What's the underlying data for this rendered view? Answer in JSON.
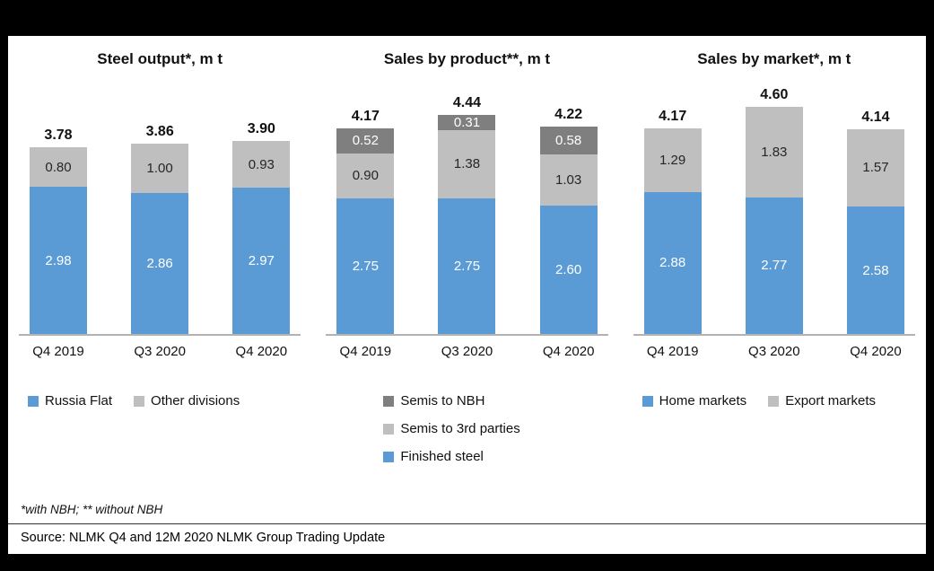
{
  "chart_data": [
    {
      "type": "bar",
      "stacked": true,
      "title": "Steel output*, m t",
      "categories": [
        "Q4 2019",
        "Q3 2020",
        "Q4 2020"
      ],
      "series": [
        {
          "name": "Russia Flat",
          "color": "#5B9BD5",
          "label_color": "#FFFFFF",
          "values": [
            2.98,
            2.86,
            2.97
          ]
        },
        {
          "name": "Other divisions",
          "color": "#BFBFBF",
          "label_color": "#262626",
          "values": [
            0.8,
            1.0,
            0.93
          ]
        }
      ],
      "totals": [
        3.78,
        3.86,
        3.9
      ],
      "ylim": [
        0,
        4.8
      ],
      "grid": false,
      "legend": {
        "orientation": "horizontal",
        "position": "bottom",
        "items": [
          {
            "label": "Russia Flat",
            "color": "#5B9BD5"
          },
          {
            "label": "Other divisions",
            "color": "#BFBFBF"
          }
        ]
      }
    },
    {
      "type": "bar",
      "stacked": true,
      "title": "Sales by product**, m t",
      "categories": [
        "Q4 2019",
        "Q3 2020",
        "Q4 2020"
      ],
      "series": [
        {
          "name": "Finished steel",
          "color": "#5B9BD5",
          "label_color": "#FFFFFF",
          "values": [
            2.75,
            2.75,
            2.6
          ]
        },
        {
          "name": "Semis to 3rd parties",
          "color": "#BFBFBF",
          "label_color": "#262626",
          "values": [
            0.9,
            1.38,
            1.03
          ]
        },
        {
          "name": "Semis to NBH",
          "color": "#7F7F7F",
          "label_color": "#FFFFFF",
          "values": [
            0.52,
            0.31,
            0.58
          ]
        }
      ],
      "totals": [
        4.17,
        4.44,
        4.22
      ],
      "ylim": [
        0,
        4.8
      ],
      "grid": false,
      "legend": {
        "orientation": "vertical",
        "position": "bottom",
        "items": [
          {
            "label": "Semis to NBH",
            "color": "#7F7F7F"
          },
          {
            "label": "Semis to 3rd parties",
            "color": "#BFBFBF"
          },
          {
            "label": "Finished steel",
            "color": "#5B9BD5"
          }
        ]
      }
    },
    {
      "type": "bar",
      "stacked": true,
      "title": "Sales by market*, m t",
      "categories": [
        "Q4 2019",
        "Q3 2020",
        "Q4 2020"
      ],
      "series": [
        {
          "name": "Home markets",
          "color": "#5B9BD5",
          "label_color": "#FFFFFF",
          "values": [
            2.88,
            2.77,
            2.58
          ]
        },
        {
          "name": "Export markets",
          "color": "#BFBFBF",
          "label_color": "#262626",
          "values": [
            1.29,
            1.83,
            1.57
          ]
        }
      ],
      "totals": [
        4.17,
        4.6,
        4.14
      ],
      "ylim": [
        0,
        4.8
      ],
      "grid": false,
      "legend": {
        "orientation": "horizontal",
        "position": "bottom",
        "items": [
          {
            "label": "Home markets",
            "color": "#5B9BD5"
          },
          {
            "label": "Export markets",
            "color": "#BFBFBF"
          }
        ]
      }
    }
  ],
  "footnotes": {
    "note": "*with NBH; ** without NBH",
    "source": "Source: NLMK Q4 and 12M 2020 NLMK Group Trading Update"
  },
  "colors": {
    "blue": "#5B9BD5",
    "light_gray": "#BFBFBF",
    "dark_gray": "#7F7F7F",
    "axis": "#B3B3B3",
    "frame": "#000000"
  }
}
